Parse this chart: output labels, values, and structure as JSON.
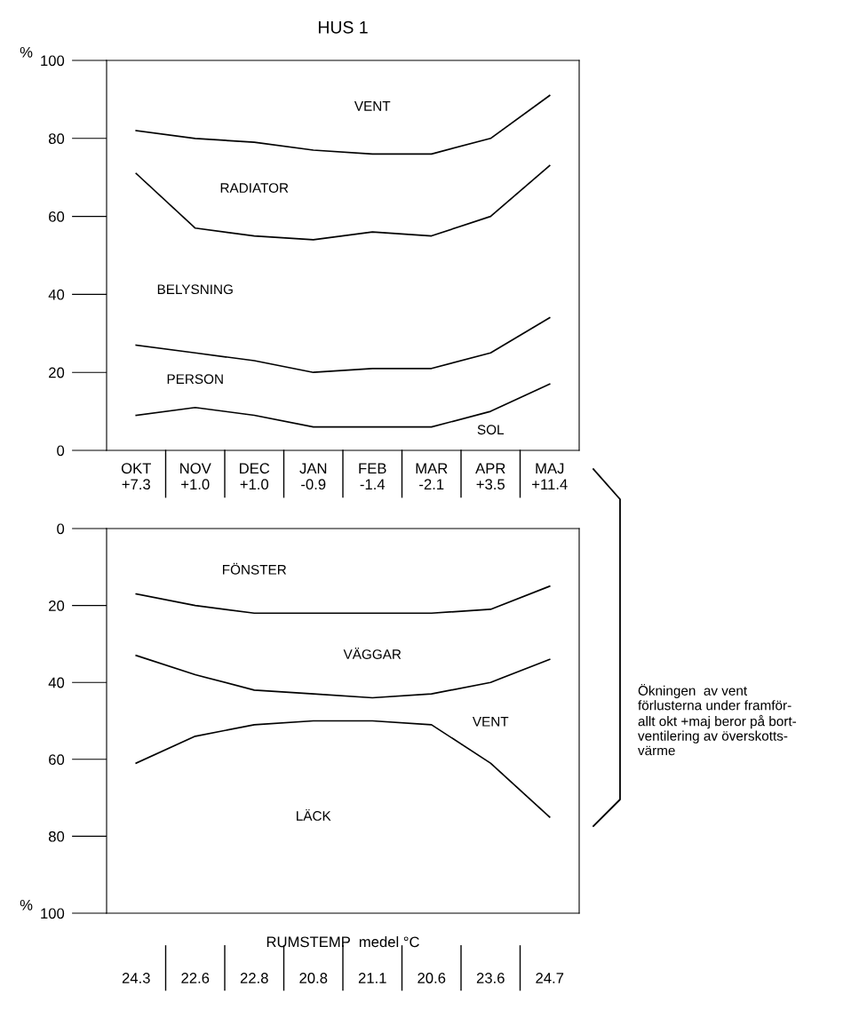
{
  "chart_data": [
    {
      "type": "line",
      "title": "HUS 1",
      "ylabel": "%",
      "categories": [
        "OKT\n+7.3",
        "NOV\n+1.0",
        "DEC\n+1.0",
        "JAN\n-0.9",
        "FEB\n-1.4",
        "MAR\n-2.1",
        "APR\n+3.5",
        "MAJ\n+11.4"
      ],
      "ylim": [
        0,
        100
      ],
      "yticks": [
        0,
        20,
        40,
        60,
        80,
        100
      ],
      "grid": false,
      "legend": false,
      "marker": "none",
      "line_style": "solid",
      "annotations": [
        "VENT",
        "RADIATOR",
        "BELYSNING",
        "PERSON",
        "SOL"
      ],
      "series": [
        {
          "color": "#000000",
          "values": [
            9,
            11,
            9,
            6,
            6,
            6,
            10,
            17
          ]
        },
        {
          "color": "#000000",
          "values": [
            27,
            25,
            23,
            20,
            21,
            21,
            25,
            34
          ]
        },
        {
          "color": "#000000",
          "values": [
            71,
            57,
            55,
            54,
            56,
            55,
            60,
            73
          ]
        },
        {
          "color": "#000000",
          "values": [
            82,
            80,
            79,
            77,
            76,
            76,
            80,
            91
          ]
        }
      ]
    },
    {
      "type": "line",
      "ylabel": "%",
      "xlabel": "RUMSTEMP  medel °C",
      "categories": [
        "24.3",
        "22.6",
        "22.8",
        "20.8",
        "21.1",
        "20.6",
        "23.6",
        "24.7"
      ],
      "ylim": [
        100,
        0
      ],
      "yticks": [
        0,
        20,
        40,
        60,
        80,
        100
      ],
      "grid": false,
      "legend": false,
      "marker": "none",
      "line_style": "solid",
      "annotations": [
        "FÖNSTER",
        "VÄGGAR",
        "VENT",
        "LÄCK",
        "Ökningen  av vent\nförlusterna under framför-\nallt okt +maj beror på bort-\nventilering av överskotts-\nvärme"
      ],
      "series": [
        {
          "color": "#000000",
          "values": [
            17,
            20,
            22,
            22,
            22,
            22,
            21,
            15
          ]
        },
        {
          "color": "#000000",
          "values": [
            33,
            38,
            42,
            43,
            44,
            43,
            40,
            34
          ]
        },
        {
          "color": "#000000",
          "values": [
            61,
            54,
            51,
            50,
            50,
            51,
            61,
            75
          ]
        }
      ]
    }
  ]
}
